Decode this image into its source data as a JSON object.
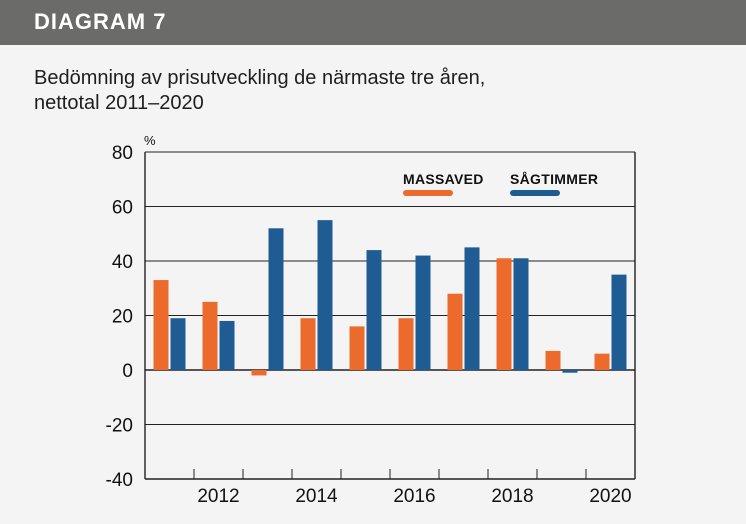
{
  "header": {
    "title": "DIAGRAM 7"
  },
  "subtitle": "Bedömning av prisutveckling de närmaste tre åren,\nnettotal 2011–2020",
  "colors": {
    "header_bg": "#6b6b69",
    "massaved": "#ec6a2c",
    "sagtimmer": "#1f5c94",
    "grid": "#222222"
  },
  "chart_data": {
    "type": "bar",
    "categories": [
      "2011",
      "2012",
      "2013",
      "2014",
      "2015",
      "2016",
      "2017",
      "2018",
      "2019",
      "2020"
    ],
    "x_tick_labels": [
      "2012",
      "2014",
      "2016",
      "2018",
      "2020"
    ],
    "series": [
      {
        "name": "MASSAVED",
        "color": "#ec6a2c",
        "values": [
          33,
          25,
          -2,
          19,
          16,
          19,
          28,
          41,
          7,
          6
        ]
      },
      {
        "name": "SÅGTIMMER",
        "color": "#1f5c94",
        "values": [
          19,
          18,
          52,
          55,
          44,
          42,
          45,
          41,
          -1,
          35
        ]
      }
    ],
    "y_unit": "%",
    "ylim": [
      -40,
      80
    ],
    "yticks": [
      80,
      60,
      40,
      20,
      0,
      -20,
      -40
    ],
    "grid": true,
    "legend_position": "top-right"
  }
}
